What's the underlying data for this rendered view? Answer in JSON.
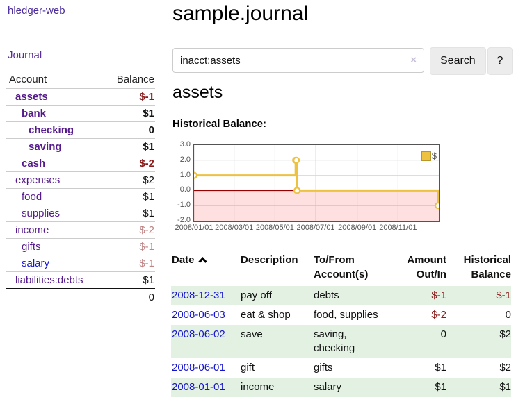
{
  "app": {
    "title": "hledger-web",
    "nav_journal": "Journal"
  },
  "colors": {
    "accent_purple": "#551a8b",
    "link_blue": "#1414cc",
    "negative": "#8b1a1a",
    "negative_faded": "#bf8484",
    "stripe_green": "#e3f1e3",
    "chart_line": "#edc240"
  },
  "sidebar": {
    "accounts_header": {
      "account": "Account",
      "balance": "Balance"
    },
    "accounts": [
      {
        "name": "assets",
        "depth": 1,
        "balance": "$-1",
        "bold": true,
        "balance_class": "neg",
        "link": "purple"
      },
      {
        "name": "bank",
        "depth": 2,
        "balance": "$1",
        "bold": true,
        "balance_class": "",
        "link": "purple"
      },
      {
        "name": "checking",
        "depth": 3,
        "balance": "0",
        "bold": true,
        "balance_class": "",
        "link": "purple"
      },
      {
        "name": "saving",
        "depth": 3,
        "balance": "$1",
        "bold": true,
        "balance_class": "",
        "link": "purple"
      },
      {
        "name": "cash",
        "depth": 2,
        "balance": "$-2",
        "bold": true,
        "balance_class": "neg",
        "link": "purple"
      },
      {
        "name": "expenses",
        "depth": 1,
        "balance": "$2",
        "bold": false,
        "balance_class": "",
        "link": "purple"
      },
      {
        "name": "food",
        "depth": 2,
        "balance": "$1",
        "bold": false,
        "balance_class": "",
        "link": "purple"
      },
      {
        "name": "supplies",
        "depth": 2,
        "balance": "$1",
        "bold": false,
        "balance_class": "",
        "link": "purple"
      },
      {
        "name": "income",
        "depth": 1,
        "balance": "$-2",
        "bold": false,
        "balance_class": "negfade",
        "link": "purple"
      },
      {
        "name": "gifts",
        "depth": 2,
        "balance": "$-1",
        "bold": false,
        "balance_class": "negfade",
        "link": "purple"
      },
      {
        "name": "salary",
        "depth": 2,
        "balance": "$-1",
        "bold": false,
        "balance_class": "negfade",
        "link": "blue"
      },
      {
        "name": "liabilities:debts",
        "depth": 1,
        "balance": "$1",
        "bold": false,
        "balance_class": "",
        "link": "purple"
      }
    ],
    "total": "0"
  },
  "header": {
    "title": "sample.journal"
  },
  "search": {
    "value": "inacct:assets",
    "clear_icon": "×",
    "button": "Search",
    "help_button": "?"
  },
  "register": {
    "heading": "assets",
    "chart_label": "Historical Balance:",
    "sort": "ascending",
    "table": {
      "headers": [
        "Date",
        "Description",
        "To/From Account(s)",
        "Amount Out/In",
        "Historical Balance"
      ],
      "rows": [
        {
          "date": "2008-12-31",
          "description": "pay off",
          "accounts": "debts",
          "amount": "$-1",
          "amount_neg": true,
          "balance": "$-1",
          "balance_neg": true
        },
        {
          "date": "2008-06-03",
          "description": "eat & shop",
          "accounts": "food, supplies",
          "amount": "$-2",
          "amount_neg": true,
          "balance": "0",
          "balance_neg": false
        },
        {
          "date": "2008-06-02",
          "description": "save",
          "accounts": "saving, checking",
          "amount": "0",
          "amount_neg": false,
          "balance": "$2",
          "balance_neg": false
        },
        {
          "date": "2008-06-01",
          "description": "gift",
          "accounts": "gifts",
          "amount": "$1",
          "amount_neg": false,
          "balance": "$2",
          "balance_neg": false
        },
        {
          "date": "2008-01-01",
          "description": "income",
          "accounts": "salary",
          "amount": "$1",
          "amount_neg": false,
          "balance": "$1",
          "balance_neg": false
        }
      ]
    }
  },
  "chart_data": {
    "type": "line",
    "step": true,
    "title": "Historical Balance:",
    "legend": "$",
    "legend_position": "top-right",
    "x_range": [
      "2008-01-01",
      "2009-01-01"
    ],
    "ylim": [
      -2,
      3
    ],
    "y_ticks": [
      {
        "v": 3,
        "label": "3.0"
      },
      {
        "v": 2,
        "label": "2.0"
      },
      {
        "v": 1,
        "label": "1.0"
      },
      {
        "v": 0,
        "label": "0.0"
      },
      {
        "v": -1,
        "label": "-1.0"
      },
      {
        "v": -2,
        "label": "-2.0"
      }
    ],
    "x_ticks": [
      {
        "date": "2008-01-01",
        "label": "2008/01/01"
      },
      {
        "date": "2008-03-01",
        "label": "2008/03/01"
      },
      {
        "date": "2008-05-01",
        "label": "2008/05/01"
      },
      {
        "date": "2008-07-01",
        "label": "2008/07/01"
      },
      {
        "date": "2008-09-01",
        "label": "2008/09/01"
      },
      {
        "date": "2008-11-01",
        "label": "2008/11/01"
      }
    ],
    "series": [
      {
        "name": "$",
        "color": "#edc240",
        "marker_fill": "#ffffff",
        "points": [
          {
            "date": "2008-01-01",
            "value": 1
          },
          {
            "date": "2008-06-01",
            "value": 2
          },
          {
            "date": "2008-06-02",
            "value": 2
          },
          {
            "date": "2008-06-03",
            "value": 0
          },
          {
            "date": "2008-12-31",
            "value": -1
          }
        ]
      }
    ],
    "grid": true,
    "grid_color": "#d8d8d8",
    "border_color": "#545454",
    "zero_line_color": "#990000",
    "negative_region_color": "rgba(255,0,0,0.12)"
  }
}
